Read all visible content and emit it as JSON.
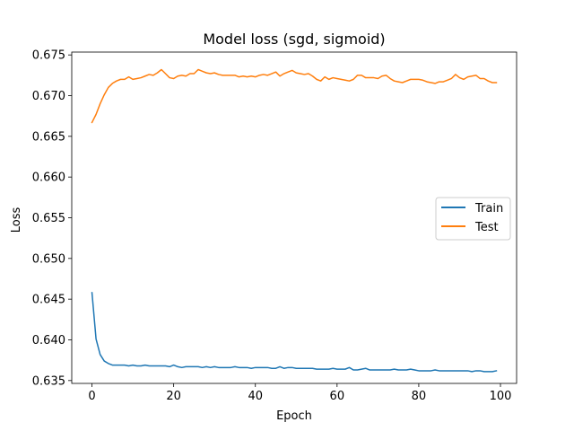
{
  "chart_data": {
    "type": "line",
    "title": "Model loss (sgd, sigmoid)",
    "xlabel": "Epoch",
    "ylabel": "Loss",
    "xlim": [
      -4.95,
      103.95
    ],
    "ylim": [
      0.63465,
      0.67535
    ],
    "xticks": [
      0,
      20,
      40,
      60,
      80,
      100
    ],
    "yticks": [
      0.635,
      0.64,
      0.645,
      0.65,
      0.655,
      0.66,
      0.665,
      0.67,
      0.675
    ],
    "ytick_labels": [
      "0.635",
      "0.640",
      "0.645",
      "0.650",
      "0.655",
      "0.660",
      "0.665",
      "0.670",
      "0.675"
    ],
    "grid": false,
    "legend_position": "center-right",
    "series": [
      {
        "name": "Train",
        "color": "#1f77b4",
        "values": [
          0.6458,
          0.6401,
          0.6382,
          0.6374,
          0.6371,
          0.6369,
          0.6369,
          0.6369,
          0.6369,
          0.6368,
          0.6369,
          0.6368,
          0.6368,
          0.6369,
          0.6368,
          0.6368,
          0.6368,
          0.6368,
          0.6368,
          0.6367,
          0.6369,
          0.6367,
          0.6366,
          0.6367,
          0.6367,
          0.6367,
          0.6367,
          0.6366,
          0.6367,
          0.6366,
          0.6367,
          0.6366,
          0.6366,
          0.6366,
          0.6366,
          0.6367,
          0.6366,
          0.6366,
          0.6366,
          0.6365,
          0.6366,
          0.6366,
          0.6366,
          0.6366,
          0.6365,
          0.6365,
          0.6367,
          0.6365,
          0.6366,
          0.6366,
          0.6365,
          0.6365,
          0.6365,
          0.6365,
          0.6365,
          0.6364,
          0.6364,
          0.6364,
          0.6364,
          0.6365,
          0.6364,
          0.6364,
          0.6364,
          0.6366,
          0.6363,
          0.6363,
          0.6364,
          0.6365,
          0.6363,
          0.6363,
          0.6363,
          0.6363,
          0.6363,
          0.6363,
          0.6364,
          0.6363,
          0.6363,
          0.6363,
          0.6364,
          0.6363,
          0.6362,
          0.6362,
          0.6362,
          0.6362,
          0.6363,
          0.6362,
          0.6362,
          0.6362,
          0.6362,
          0.6362,
          0.6362,
          0.6362,
          0.6362,
          0.6361,
          0.6362,
          0.6362,
          0.6361,
          0.6361,
          0.6361,
          0.6362
        ]
      },
      {
        "name": "Test",
        "color": "#ff7f0e",
        "values": [
          0.6667,
          0.6677,
          0.669,
          0.6701,
          0.671,
          0.6715,
          0.6718,
          0.672,
          0.672,
          0.6723,
          0.672,
          0.6721,
          0.6722,
          0.6724,
          0.6726,
          0.6725,
          0.6728,
          0.6732,
          0.6727,
          0.6722,
          0.6721,
          0.6724,
          0.6725,
          0.6724,
          0.6727,
          0.6727,
          0.6732,
          0.673,
          0.6728,
          0.6727,
          0.6728,
          0.6726,
          0.6725,
          0.6725,
          0.6725,
          0.6725,
          0.6723,
          0.6724,
          0.6723,
          0.6724,
          0.6723,
          0.6725,
          0.6726,
          0.6725,
          0.6727,
          0.6729,
          0.6724,
          0.6727,
          0.6729,
          0.6731,
          0.6728,
          0.6727,
          0.6726,
          0.6727,
          0.6724,
          0.672,
          0.6718,
          0.6723,
          0.672,
          0.6722,
          0.6721,
          0.672,
          0.6719,
          0.6718,
          0.672,
          0.6725,
          0.6725,
          0.6722,
          0.6722,
          0.6722,
          0.6721,
          0.6724,
          0.6725,
          0.6721,
          0.6718,
          0.6717,
          0.6716,
          0.6718,
          0.672,
          0.672,
          0.672,
          0.6719,
          0.6717,
          0.6716,
          0.6715,
          0.6717,
          0.6717,
          0.6719,
          0.6721,
          0.6726,
          0.6722,
          0.672,
          0.6723,
          0.6724,
          0.6725,
          0.6721,
          0.6721,
          0.6718,
          0.6716,
          0.6716
        ]
      }
    ]
  }
}
